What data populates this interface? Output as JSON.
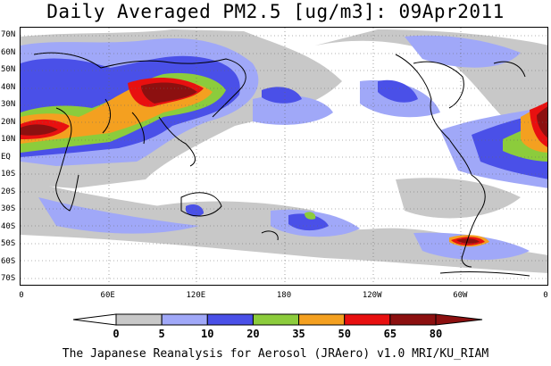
{
  "title": "Daily Averaged PM2.5 [ug/m3]: 09Apr2011",
  "footer": "The Japanese Reanalysis for Aerosol (JRAero) v1.0 MRI/KU_RIAM",
  "lat_labels": [
    "70N",
    "60N",
    "50N",
    "40N",
    "30N",
    "20N",
    "10N",
    "EQ",
    "10S",
    "20S",
    "30S",
    "40S",
    "50S",
    "60S",
    "70S"
  ],
  "lon_labels": [
    "0",
    "60E",
    "120E",
    "180",
    "120W",
    "60W",
    "0"
  ],
  "colorbar": {
    "labels": [
      "0",
      "5",
      "10",
      "20",
      "35",
      "50",
      "65",
      "80"
    ],
    "colors": [
      "#ffffff",
      "#c8c8c8",
      "#a0a8f8",
      "#4a50e8",
      "#8ccc3c",
      "#f4a020",
      "#e81010",
      "#8c1010"
    ],
    "under_color": "#ffffff",
    "over_color": "#8c1010"
  },
  "levels": {
    "gray": "#c8c8c8",
    "light_blue": "#a0a8f8",
    "blue": "#4a50e8",
    "green": "#8ccc3c",
    "orange": "#f4a020",
    "red": "#e81010",
    "dark_red": "#8c1010"
  }
}
